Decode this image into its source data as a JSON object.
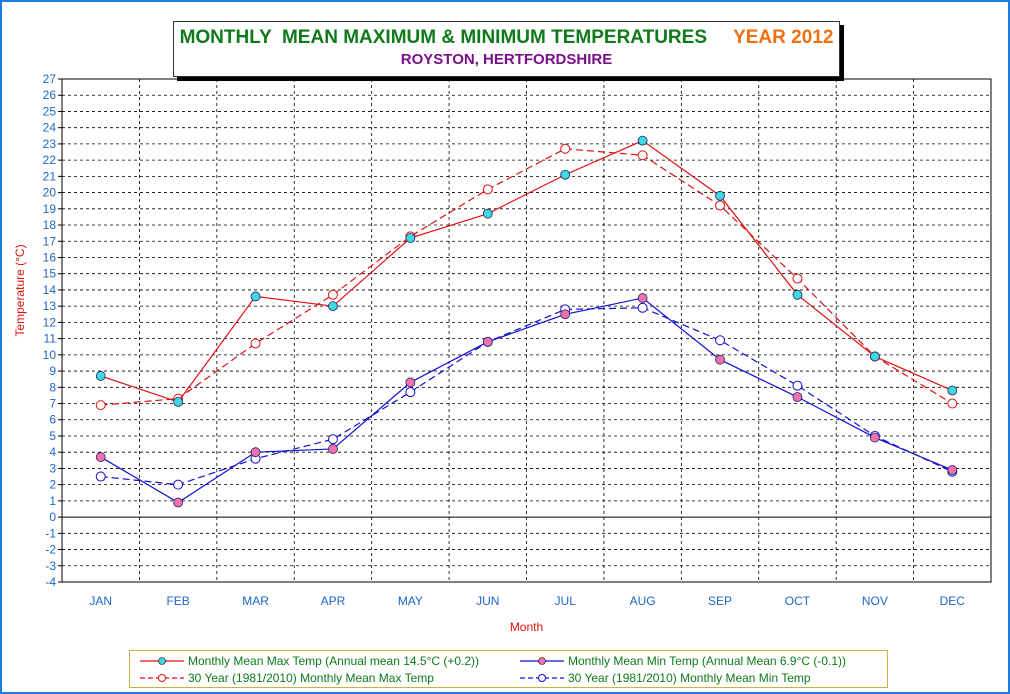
{
  "title": {
    "main": "MONTHLY  MEAN MAXIMUM & MINIMUM TEMPERATURES",
    "year": "YEAR 2012",
    "subtitle": "ROYSTON, HERTFORDSHIRE"
  },
  "colors": {
    "max_line": "#e01010",
    "min_line": "#1010d0",
    "max_marker_fill": "#40d8e0",
    "min_marker_fill": "#f070b0",
    "axis_text": "#1e66c8",
    "axis_label": "#e01010",
    "grid": "#000000",
    "zero_line": "#000000"
  },
  "chart_data": {
    "type": "line",
    "title": "MONTHLY  MEAN MAXIMUM & MINIMUM TEMPERATURES",
    "subtitle": "ROYSTON, HERTFORDSHIRE",
    "xlabel": "Month",
    "ylabel": "Temperature (°C)",
    "ylim": [
      -4,
      27
    ],
    "yticks": [
      27,
      26,
      25,
      24,
      23,
      22,
      21,
      20,
      19,
      18,
      17,
      16,
      15,
      14,
      13,
      12,
      11,
      10,
      9,
      8,
      7,
      6,
      5,
      4,
      3,
      2,
      1,
      0,
      -1,
      -2,
      -3,
      -4
    ],
    "grid": true,
    "legend_position": "bottom",
    "categories": [
      "JAN",
      "FEB",
      "MAR",
      "APR",
      "MAY",
      "JUN",
      "JUL",
      "AUG",
      "SEP",
      "OCT",
      "NOV",
      "DEC"
    ],
    "series": [
      {
        "name": "Monthly Mean Max Temp (Annual mean 14.5°C (+0.2))",
        "style": "solid",
        "color": "#e01010",
        "marker": "filled-cyan",
        "values": [
          8.7,
          7.1,
          13.6,
          13.0,
          17.2,
          18.7,
          21.1,
          23.2,
          19.8,
          13.7,
          9.9,
          7.8
        ]
      },
      {
        "name": "Monthly Mean Min Temp (Annual Mean 6.9°C (-0.1))",
        "style": "solid",
        "color": "#1010d0",
        "marker": "filled-pink",
        "values": [
          3.7,
          0.9,
          4.0,
          4.2,
          8.3,
          10.8,
          12.5,
          13.5,
          9.7,
          7.4,
          4.9,
          2.9
        ]
      },
      {
        "name": "30 Year (1981/2010) Monthly Mean Max Temp",
        "style": "dashed",
        "color": "#e01010",
        "marker": "open-red",
        "values": [
          6.9,
          7.3,
          10.7,
          13.7,
          17.3,
          20.2,
          22.7,
          22.3,
          19.2,
          14.7,
          9.9,
          7.0
        ]
      },
      {
        "name": "30 Year (1981/2010) Monthly Mean Min Temp",
        "style": "dashed",
        "color": "#1010d0",
        "marker": "open-blue",
        "values": [
          2.5,
          2.0,
          3.6,
          4.8,
          7.7,
          10.8,
          12.8,
          12.9,
          10.9,
          8.1,
          5.0,
          2.8
        ]
      }
    ]
  },
  "legend": {
    "items": [
      {
        "label": "Monthly Mean Max Temp (Annual mean 14.5°C (+0.2))"
      },
      {
        "label": "Monthly Mean Min Temp (Annual Mean 6.9°C (-0.1))"
      },
      {
        "label": "30 Year (1981/2010) Monthly Mean Max Temp"
      },
      {
        "label": "30 Year (1981/2010) Monthly Mean Min Temp"
      }
    ]
  }
}
